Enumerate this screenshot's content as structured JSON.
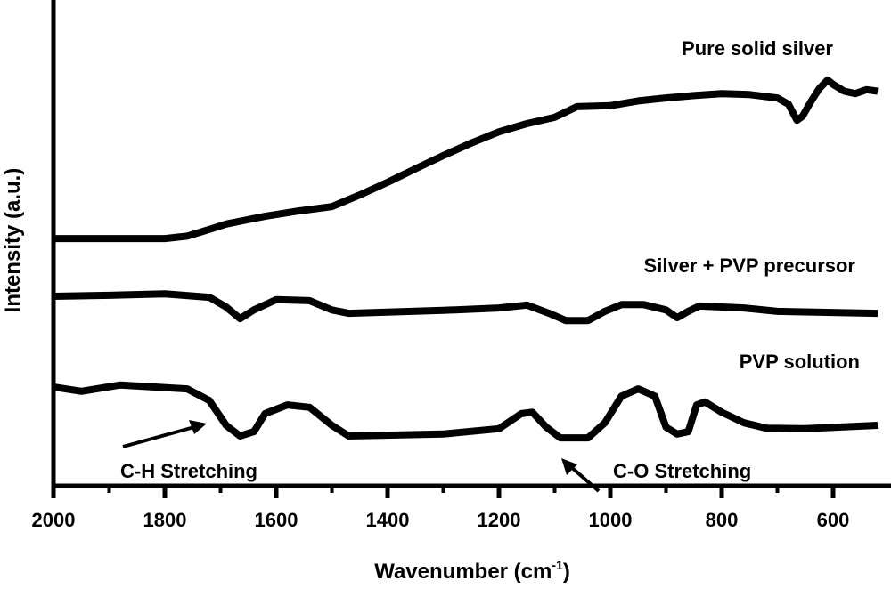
{
  "chart_data": {
    "type": "line",
    "title": "",
    "xlabel": "Wavenumber (cm",
    "xlabel_sup": "-1",
    "xlabel_close": ")",
    "ylabel": "Intensity (a.u.)",
    "xlim": [
      2000,
      504
    ],
    "ylim": [
      0,
      100
    ],
    "x_ticks": [
      2000,
      1800,
      1600,
      1400,
      1200,
      1000,
      800,
      600
    ],
    "x_minor_ticks": [
      1900,
      1700,
      1500,
      1300,
      1100,
      900,
      700
    ],
    "grid": false,
    "series": [
      {
        "name": "Pure solid silver",
        "color": "#000000",
        "x": [
          2000,
          1900,
          1800,
          1760,
          1720,
          1690,
          1660,
          1620,
          1560,
          1500,
          1450,
          1400,
          1350,
          1300,
          1250,
          1200,
          1150,
          1100,
          1060,
          1000,
          950,
          900,
          850,
          800,
          750,
          700,
          680,
          665,
          655,
          640,
          625,
          610,
          600,
          580,
          560,
          540,
          520
        ],
        "y": [
          50.8,
          50.8,
          50.8,
          51.3,
          52.7,
          53.8,
          54.5,
          55.4,
          56.5,
          57.4,
          59.8,
          62.4,
          65.2,
          67.9,
          70.5,
          72.8,
          74.5,
          75.8,
          78.0,
          78.2,
          79.2,
          79.8,
          80.3,
          80.7,
          80.5,
          79.8,
          78.5,
          75.2,
          76.0,
          79.0,
          81.7,
          83.5,
          82.6,
          81.2,
          80.7,
          81.5,
          81.2
        ]
      },
      {
        "name": "Silver + PVP precursor",
        "color": "#000000",
        "x": [
          2000,
          1900,
          1800,
          1720,
          1690,
          1665,
          1640,
          1600,
          1540,
          1500,
          1470,
          1300,
          1200,
          1150,
          1110,
          1080,
          1040,
          1010,
          980,
          940,
          900,
          880,
          860,
          840,
          760,
          700,
          520
        ],
        "y": [
          38.9,
          39.1,
          39.4,
          38.7,
          36.7,
          34.3,
          36.1,
          38.2,
          38.0,
          36.1,
          35.4,
          36.0,
          36.5,
          37.1,
          35.4,
          33.9,
          33.9,
          35.8,
          37.2,
          37.2,
          36.1,
          34.5,
          35.8,
          36.9,
          36.5,
          35.8,
          35.4
        ]
      },
      {
        "name": "PVP solution",
        "color": "#000000",
        "x": [
          2000,
          1950,
          1880,
          1760,
          1720,
          1690,
          1665,
          1640,
          1620,
          1580,
          1540,
          1500,
          1470,
          1300,
          1200,
          1160,
          1140,
          1115,
          1090,
          1040,
          1010,
          980,
          950,
          920,
          900,
          880,
          860,
          845,
          830,
          800,
          760,
          720,
          650,
          520
        ],
        "y": [
          20.2,
          19.3,
          20.6,
          19.8,
          17.4,
          12.3,
          10.1,
          11.0,
          14.7,
          16.5,
          16.0,
          12.3,
          10.1,
          10.5,
          11.6,
          14.7,
          15.0,
          11.9,
          9.7,
          9.7,
          12.8,
          18.3,
          19.8,
          18.3,
          11.9,
          10.5,
          11.0,
          16.5,
          17.1,
          15.0,
          12.8,
          11.7,
          11.6,
          12.3
        ]
      }
    ],
    "annotations": [
      {
        "text": "Pure solid silver"
      },
      {
        "text": "Silver + PVP precursor"
      },
      {
        "text": "PVP solution"
      },
      {
        "text": "C-H Stretching",
        "arrow_to_x": 1690
      },
      {
        "text": "C-O Stretching",
        "arrow_to_x": 1105
      }
    ]
  }
}
